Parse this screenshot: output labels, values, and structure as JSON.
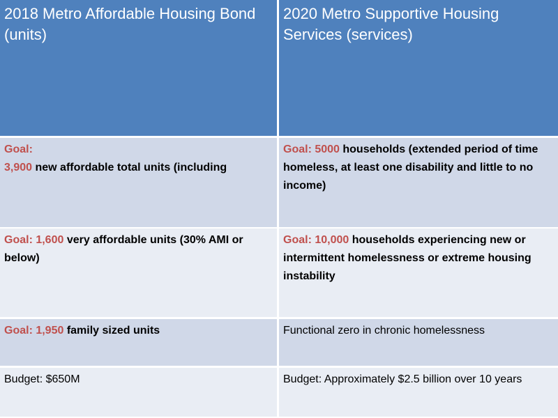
{
  "header": {
    "col1": "2018 Metro Affordable Housing Bond (units)",
    "col2": "2020 Metro Supportive Housing Services (services)"
  },
  "rows": [
    {
      "col1": {
        "goal": "Goal:",
        "value": "3,900",
        "text": " new affordable total units (including"
      },
      "col2": {
        "goal": "Goal: 5000",
        "text": " households (extended period of time homeless, at least one disability and little to no income)"
      }
    },
    {
      "col1": {
        "goal": "Goal: 1,600",
        "text": " very affordable units (30% AMI or below)"
      },
      "col2": {
        "goal": "Goal: 10,000",
        "text": " households experiencing new or intermittent homelessness or extreme housing instability"
      }
    },
    {
      "col1": {
        "goal": "Goal: 1,950",
        "text": " family sized units"
      },
      "col2": {
        "text": "Functional zero in chronic homelessness"
      }
    },
    {
      "col1": {
        "text": "Budget: $650M"
      },
      "col2": {
        "text": "Budget: Approximately $2.5 billion over 10 years"
      }
    }
  ],
  "colors": {
    "header": "#4F81BD",
    "row_dark": "#D0D8E8",
    "row_light": "#E9EDF4",
    "goal_red": "#C0504D"
  }
}
